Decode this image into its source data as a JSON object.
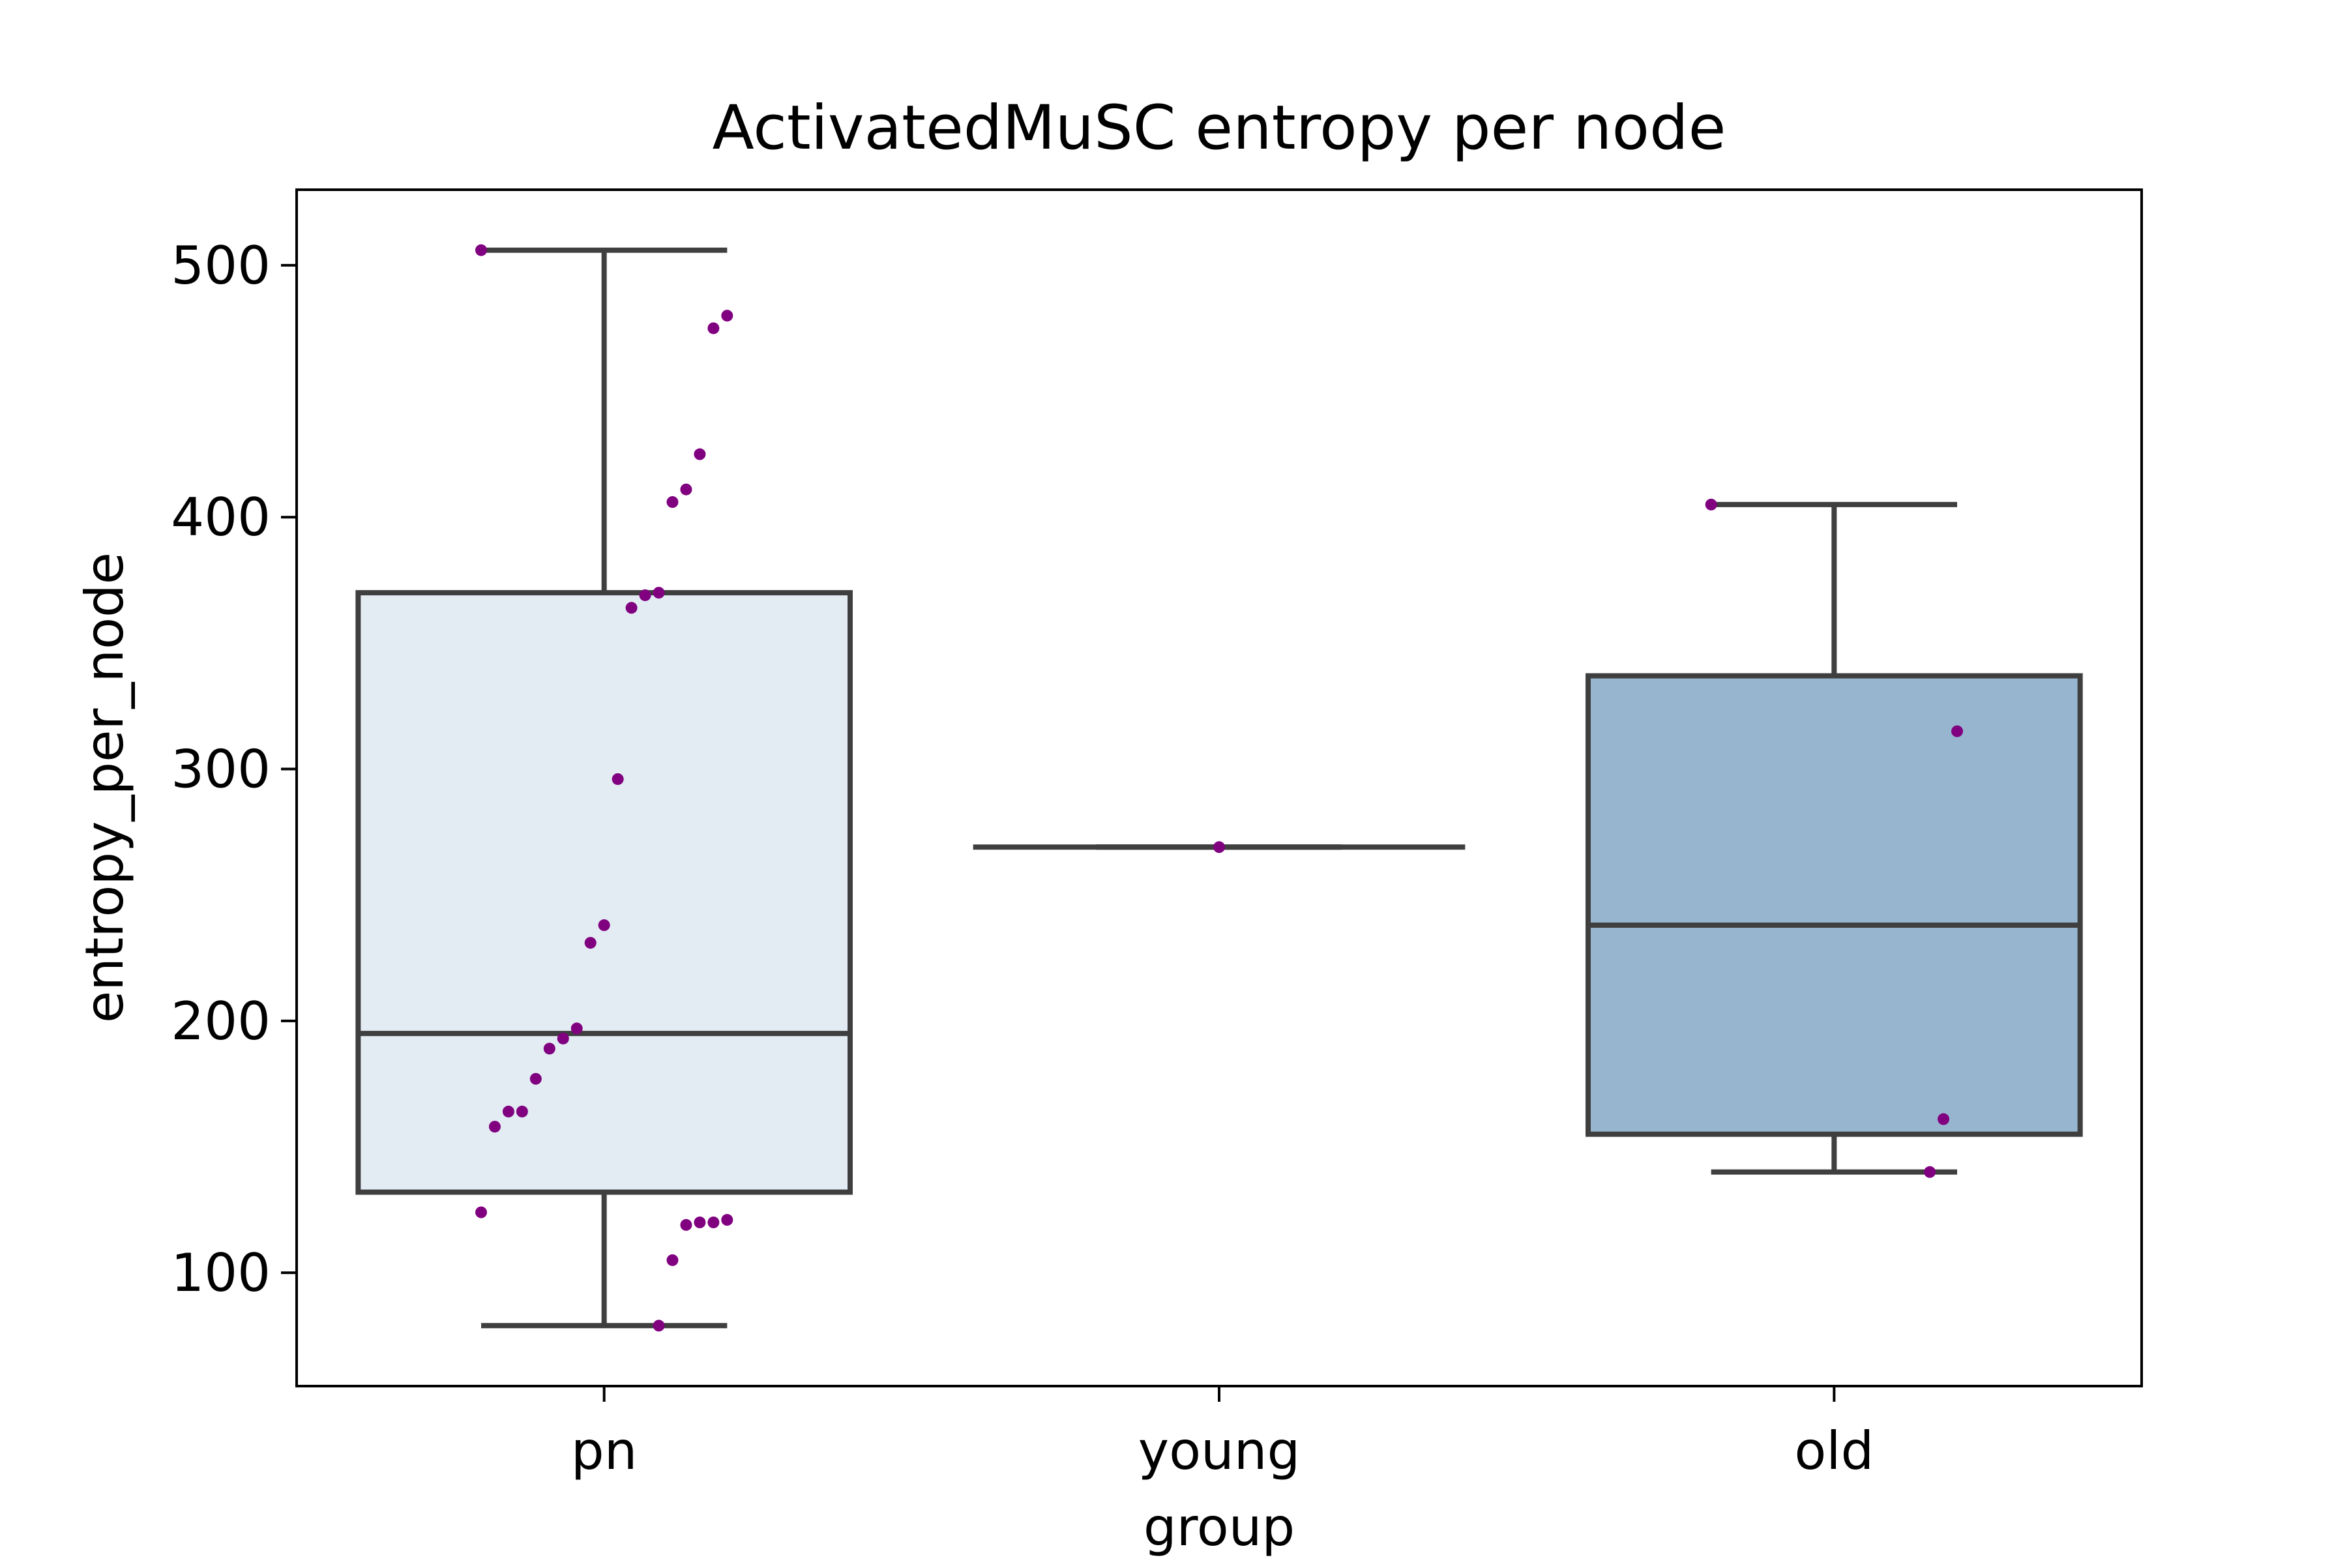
{
  "chart_data": {
    "type": "box",
    "title": "ActivatedMuSC entropy per node",
    "xlabel": "group",
    "ylabel": "entropy_per_node",
    "categories": [
      "pn",
      "young",
      "old"
    ],
    "ylim": [
      55,
      530
    ],
    "yticks": [
      100,
      200,
      300,
      400,
      500
    ],
    "grid": false,
    "colors": {
      "box_fills": [
        "#e3ebf3",
        "#ffffff",
        "#98b5d0"
      ],
      "box_edge": "#3f3f3f",
      "points": "#800080"
    },
    "boxes": [
      {
        "category": "pn",
        "whisker_low": 79,
        "q1": 132,
        "median": 195,
        "q3": 370,
        "whisker_high": 506
      },
      {
        "category": "young",
        "whisker_low": 269,
        "q1": 269,
        "median": 269,
        "q3": 269,
        "whisker_high": 269
      },
      {
        "category": "old",
        "whisker_low": 140,
        "q1": 155,
        "median": 238,
        "q3": 337,
        "whisker_high": 405
      }
    ],
    "points": [
      {
        "category": "pn",
        "values": [
          506,
          480,
          475,
          425,
          411,
          406,
          370,
          369,
          364,
          296,
          238,
          231,
          197,
          193,
          189,
          177,
          164,
          164,
          158,
          124,
          121,
          120,
          120,
          119,
          105,
          79
        ]
      },
      {
        "category": "young",
        "values": [
          269
        ]
      },
      {
        "category": "old",
        "values": [
          405,
          315,
          161,
          140
        ]
      }
    ]
  }
}
